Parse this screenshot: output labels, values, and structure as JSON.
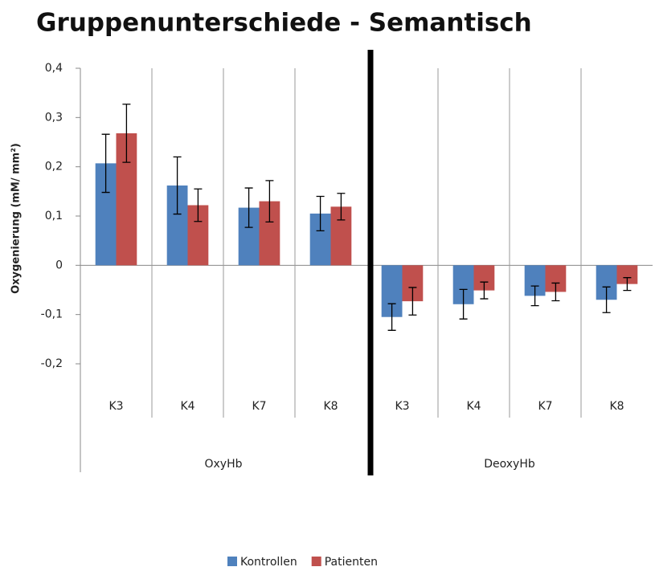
{
  "chart_data": {
    "type": "bar",
    "title": "Gruppenunterschiede - Semantisch",
    "y_label": "Oxygenierung (mM/ mm²)",
    "categories": [
      "K3",
      "K4",
      "K7",
      "K8",
      "K3",
      "K4",
      "K7",
      "K8"
    ],
    "groups": [
      "OxyHb",
      "DeoxyHb"
    ],
    "series": [
      {
        "name": "Kontrollen",
        "color": "#4f81bd",
        "values": [
          0.207,
          0.162,
          0.117,
          0.105,
          -0.105,
          -0.079,
          -0.062,
          -0.07
        ],
        "errors": [
          0.059,
          0.058,
          0.04,
          0.035,
          0.027,
          0.03,
          0.02,
          0.026
        ]
      },
      {
        "name": "Patienten",
        "color": "#c0504d",
        "values": [
          0.268,
          0.122,
          0.13,
          0.119,
          -0.073,
          -0.051,
          -0.054,
          -0.038
        ],
        "errors": [
          0.059,
          0.033,
          0.042,
          0.027,
          0.028,
          0.017,
          0.018,
          0.013
        ]
      }
    ],
    "ylim": [
      -0.2,
      0.4
    ],
    "yticks": [
      {
        "value": 0.4,
        "label": "0,4"
      },
      {
        "value": 0.3,
        "label": "0,3"
      },
      {
        "value": 0.2,
        "label": "0,2"
      },
      {
        "value": 0.1,
        "label": "0,1"
      },
      0,
      {
        "value": -0.1,
        "label": "-0,1"
      },
      {
        "value": -0.2,
        "label": "-0,2"
      }
    ],
    "legend": "bottom"
  }
}
